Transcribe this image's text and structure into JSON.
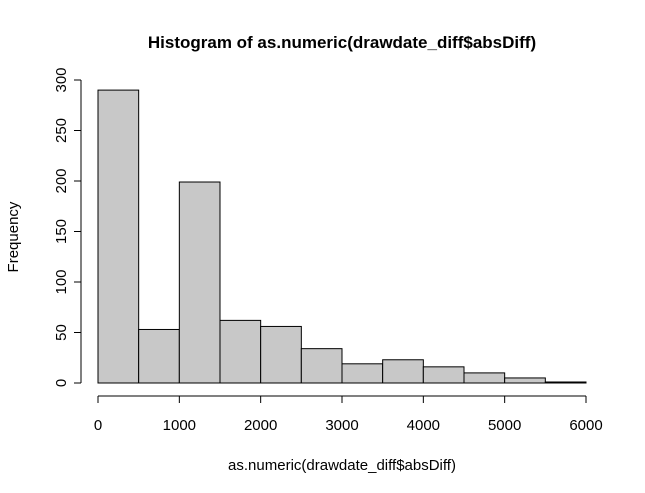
{
  "chart_data": {
    "type": "bar",
    "title": "Histogram of as.numeric(drawdate_diff$absDiff)",
    "xlabel": "as.numeric(drawdate_diff$absDiff)",
    "ylabel": "Frequency",
    "bin_edges": [
      0,
      500,
      1000,
      1500,
      2000,
      2500,
      3000,
      3500,
      4000,
      4500,
      5000,
      5500,
      6000
    ],
    "values": [
      290,
      53,
      199,
      62,
      56,
      34,
      19,
      23,
      16,
      10,
      5,
      1
    ],
    "xlim": [
      0,
      6000
    ],
    "ylim": [
      0,
      300
    ],
    "x_ticks": [
      0,
      1000,
      2000,
      3000,
      4000,
      5000,
      6000
    ],
    "y_ticks": [
      0,
      50,
      100,
      150,
      200,
      250,
      300
    ],
    "bar_fill": "#c8c8c8",
    "bar_stroke": "#000000",
    "grid": false
  }
}
